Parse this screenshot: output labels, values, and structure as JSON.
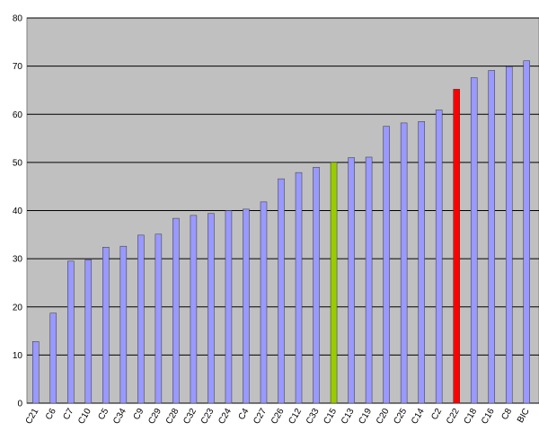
{
  "chart_data": {
    "type": "bar",
    "categories": [
      "C21",
      "C6",
      "C7",
      "C10",
      "C5",
      "C34",
      "C9",
      "C29",
      "C28",
      "C32",
      "C23",
      "C24",
      "C4",
      "C27",
      "C26",
      "C12",
      "C33",
      "C15",
      "C13",
      "C19",
      "C20",
      "C25",
      "C14",
      "C2",
      "C22",
      "C18",
      "C16",
      "C8",
      "BIC"
    ],
    "values": [
      12.8,
      18.7,
      29.5,
      29.8,
      32.4,
      32.6,
      34.9,
      35.1,
      38.4,
      39.0,
      39.4,
      40.0,
      40.3,
      41.8,
      46.6,
      47.9,
      49.0,
      50.0,
      51.0,
      51.1,
      57.5,
      58.2,
      58.5,
      60.9,
      65.2,
      67.6,
      69.1,
      69.9,
      71.1
    ],
    "colors": [
      "#9999ff",
      "#9999ff",
      "#9999ff",
      "#9999ff",
      "#9999ff",
      "#9999ff",
      "#9999ff",
      "#9999ff",
      "#9999ff",
      "#9999ff",
      "#9999ff",
      "#9999ff",
      "#9999ff",
      "#9999ff",
      "#9999ff",
      "#9999ff",
      "#9999ff",
      "#99cc00",
      "#9999ff",
      "#9999ff",
      "#9999ff",
      "#9999ff",
      "#9999ff",
      "#9999ff",
      "#ff0000",
      "#9999ff",
      "#9999ff",
      "#9999ff",
      "#9999ff"
    ],
    "ylim": [
      0,
      80
    ],
    "yticks": [
      0,
      10,
      20,
      30,
      40,
      50,
      60,
      70,
      80
    ],
    "grid": true
  }
}
